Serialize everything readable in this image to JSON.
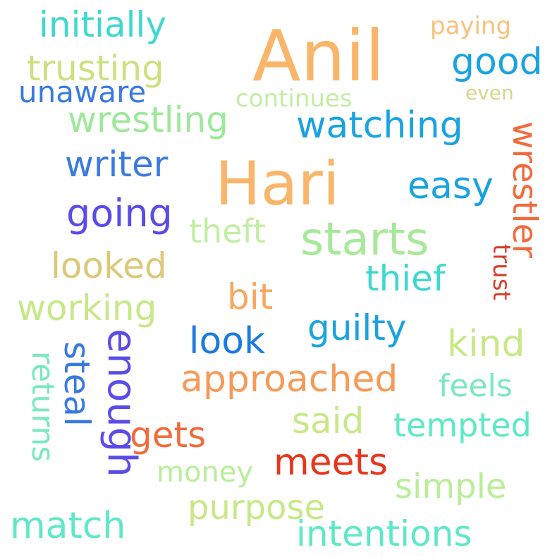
{
  "words": [
    {
      "text": "Anil",
      "color": "#f9b66a"
    },
    {
      "text": "Hari",
      "color": "#f9b66a"
    },
    {
      "text": "starts",
      "color": "#a8e89a"
    },
    {
      "text": "initially",
      "color": "#3fd8d0"
    },
    {
      "text": "paying",
      "color": "#f9c17a"
    },
    {
      "text": "good",
      "color": "#1aa3e0"
    },
    {
      "text": "trusting",
      "color": "#cce080"
    },
    {
      "text": "unaware",
      "color": "#3a7ae0"
    },
    {
      "text": "continues",
      "color": "#c2eea4"
    },
    {
      "text": "even",
      "color": "#dcd38a"
    },
    {
      "text": "wrestling",
      "color": "#9ee89a"
    },
    {
      "text": "watching",
      "color": "#1aa3e0"
    },
    {
      "text": "writer",
      "color": "#3a7ae0"
    },
    {
      "text": "wrestler",
      "color": "#f26a3c"
    },
    {
      "text": "easy",
      "color": "#1aa3e0"
    },
    {
      "text": "going",
      "color": "#5b4be8"
    },
    {
      "text": "theft",
      "color": "#c2eea4"
    },
    {
      "text": "trust",
      "color": "#d8402a"
    },
    {
      "text": "looked",
      "color": "#dcc878"
    },
    {
      "text": "thief",
      "color": "#3fd8d0"
    },
    {
      "text": "bit",
      "color": "#f6a860"
    },
    {
      "text": "working",
      "color": "#c8e888"
    },
    {
      "text": "guilty",
      "color": "#1aa3e0"
    },
    {
      "text": "look",
      "color": "#1a7ae0"
    },
    {
      "text": "kind",
      "color": "#c8e888"
    },
    {
      "text": "enough",
      "color": "#5b4be8"
    },
    {
      "text": "steal",
      "color": "#3a7ae0"
    },
    {
      "text": "returns",
      "color": "#7ae8c0"
    },
    {
      "text": "approached",
      "color": "#f69a58"
    },
    {
      "text": "feels",
      "color": "#7ae8c0"
    },
    {
      "text": "gets",
      "color": "#f26a3c"
    },
    {
      "text": "said",
      "color": "#c8e888"
    },
    {
      "text": "tempted",
      "color": "#5ee8c8"
    },
    {
      "text": "meets",
      "color": "#e8361e"
    },
    {
      "text": "money",
      "color": "#b8ee98"
    },
    {
      "text": "simple",
      "color": "#b8ee98"
    },
    {
      "text": "purpose",
      "color": "#c8e888"
    },
    {
      "text": "match",
      "color": "#5ee8c8"
    },
    {
      "text": "intentions",
      "color": "#5ee8c8"
    }
  ]
}
